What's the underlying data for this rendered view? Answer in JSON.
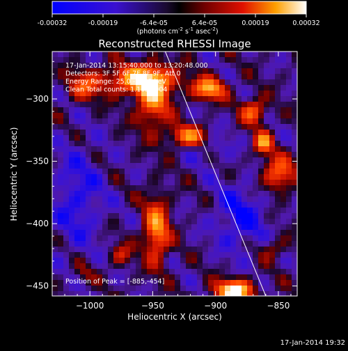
{
  "colorbar": {
    "ticks": [
      "-0.00032",
      "-0.00019",
      "-6.4e-05",
      "6.4e-05",
      "0.00019",
      "0.00032"
    ],
    "units": "(photons cm",
    "units_exp1": "-2",
    "units_mid": " s",
    "units_exp2": "-1",
    "units_mid2": " asec",
    "units_exp3": "-2",
    "units_end": ")",
    "range": [
      -0.00032,
      0.00032
    ]
  },
  "chart_data": {
    "type": "heatmap",
    "title": "Reconstructed RHESSI Image",
    "xlabel": "Heliocentric X (arcsec)",
    "ylabel": "Heliocentric Y (arcsec)",
    "xlim": [
      -1030,
      -835
    ],
    "ylim": [
      -458,
      -262
    ],
    "x_ticks": [
      -1000,
      -950,
      -900,
      -850
    ],
    "y_ticks": [
      -450,
      -400,
      -350,
      -300
    ],
    "info_lines": [
      "17-Jan-2014 13:15:40.000 to 13:20:48.000",
      "Detectors: 3F 5F 6F 7F 8F 9F, Att 0",
      "Energy Range: 25.0 - 50.0 keV",
      "Clean     Total counts: 1.10E+004"
    ],
    "peak_label": "Position of Peak = [-885,-454]",
    "peak": [
      -885,
      -454
    ],
    "limb_line": [
      [
        -940,
        -262
      ],
      [
        -860,
        -458
      ]
    ],
    "sources": [
      {
        "x": -905,
        "y": -292,
        "sx": 9,
        "sy": 6,
        "amp": 1.0
      },
      {
        "x": -920,
        "y": -330,
        "sx": 12,
        "sy": 6,
        "amp": 0.9
      },
      {
        "x": -960,
        "y": -285,
        "sx": 20,
        "sy": 8,
        "amp": 1.0
      },
      {
        "x": -950,
        "y": -300,
        "sx": 9,
        "sy": 16,
        "amp": 0.85
      },
      {
        "x": -1005,
        "y": -290,
        "sx": 9,
        "sy": 8,
        "amp": 0.6
      },
      {
        "x": -947,
        "y": -405,
        "sx": 7,
        "sy": 18,
        "amp": 0.9
      },
      {
        "x": -885,
        "y": -454,
        "sx": 10,
        "sy": 6,
        "amp": 1.4
      },
      {
        "x": -850,
        "y": -360,
        "sx": 9,
        "sy": 10,
        "amp": 0.75
      },
      {
        "x": -870,
        "y": -310,
        "sx": 7,
        "sy": 7,
        "amp": 0.75
      },
      {
        "x": -862,
        "y": -335,
        "sx": 5,
        "sy": 6,
        "amp": 0.9
      },
      {
        "x": -975,
        "y": -425,
        "sx": 6,
        "sy": 6,
        "amp": 0.45
      },
      {
        "x": -855,
        "y": -420,
        "sx": 8,
        "sy": 6,
        "amp": 0.35
      },
      {
        "x": -1005,
        "y": -440,
        "sx": 6,
        "sy": 6,
        "amp": 0.25
      }
    ],
    "negative_sources": [
      {
        "x": -1010,
        "y": -380,
        "sx": 15,
        "sy": 30,
        "amp": 0.35
      },
      {
        "x": -880,
        "y": -395,
        "sx": 15,
        "sy": 20,
        "amp": 0.4
      },
      {
        "x": -905,
        "y": -335,
        "sx": 12,
        "sy": 10,
        "amp": 0.3
      }
    ]
  },
  "footer": {
    "timestamp": "17-Jan-2014 19:32"
  }
}
